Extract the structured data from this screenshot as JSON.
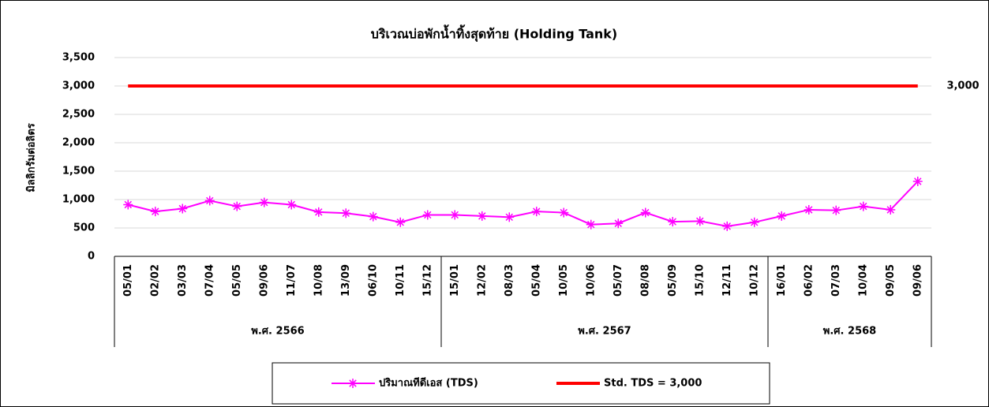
{
  "chart_data": {
    "type": "line",
    "title": "บริเวณบ่อพักน้ำทิ้งสุดท้าย (Holding Tank)",
    "y_label": "มิลลิกรัมต่อลิตร",
    "categories": [
      "05/01",
      "02/02",
      "03/03",
      "07/04",
      "05/05",
      "09/06",
      "11/07",
      "10/08",
      "13/09",
      "06/10",
      "10/11",
      "15/12",
      "15/01",
      "12/02",
      "08/03",
      "05/04",
      "10/05",
      "10/06",
      "05/07",
      "08/08",
      "05/09",
      "15/10",
      "12/11",
      "10/12",
      "16/01",
      "06/02",
      "07/03",
      "10/04",
      "09/05",
      "09/06"
    ],
    "groups": [
      {
        "label": "พ.ศ. 2566",
        "count": 12
      },
      {
        "label": "พ.ศ. 2567",
        "count": 12
      },
      {
        "label": "พ.ศ. 2568",
        "count": 6
      }
    ],
    "series": [
      {
        "name": "ปริมาณทีดีเอส (TDS)",
        "color": "#ff00ff",
        "marker": "asterisk",
        "values": [
          910,
          790,
          840,
          980,
          880,
          950,
          910,
          780,
          760,
          700,
          600,
          730,
          730,
          710,
          690,
          790,
          770,
          560,
          580,
          770,
          610,
          620,
          530,
          600,
          710,
          820,
          810,
          880,
          820,
          1320
        ]
      },
      {
        "name": "Std.  TDS  =  3,000",
        "color": "#ff0000",
        "marker": "none",
        "values": [
          3000,
          3000,
          3000,
          3000,
          3000,
          3000,
          3000,
          3000,
          3000,
          3000,
          3000,
          3000,
          3000,
          3000,
          3000,
          3000,
          3000,
          3000,
          3000,
          3000,
          3000,
          3000,
          3000,
          3000,
          3000,
          3000,
          3000,
          3000,
          3000,
          3000
        ],
        "value_labels": [
          null,
          null,
          null,
          null,
          null,
          null,
          null,
          null,
          null,
          null,
          null,
          null,
          null,
          null,
          null,
          null,
          null,
          null,
          null,
          null,
          null,
          null,
          null,
          null,
          null,
          null,
          null,
          null,
          null,
          "3,000"
        ]
      }
    ],
    "ylim": [
      0,
      3500
    ],
    "yticks": [
      0,
      {
        "value": 500,
        "label": "500"
      },
      {
        "value": 1000,
        "label": "1,000"
      },
      {
        "value": 1500,
        "label": "1,500"
      },
      {
        "value": 2000,
        "label": "2,000"
      },
      {
        "value": 2500,
        "label": "2,500"
      },
      {
        "value": 3000,
        "label": "3,000"
      },
      {
        "value": 3500,
        "label": "3,500"
      }
    ],
    "grid": true,
    "legend": "bottom"
  }
}
